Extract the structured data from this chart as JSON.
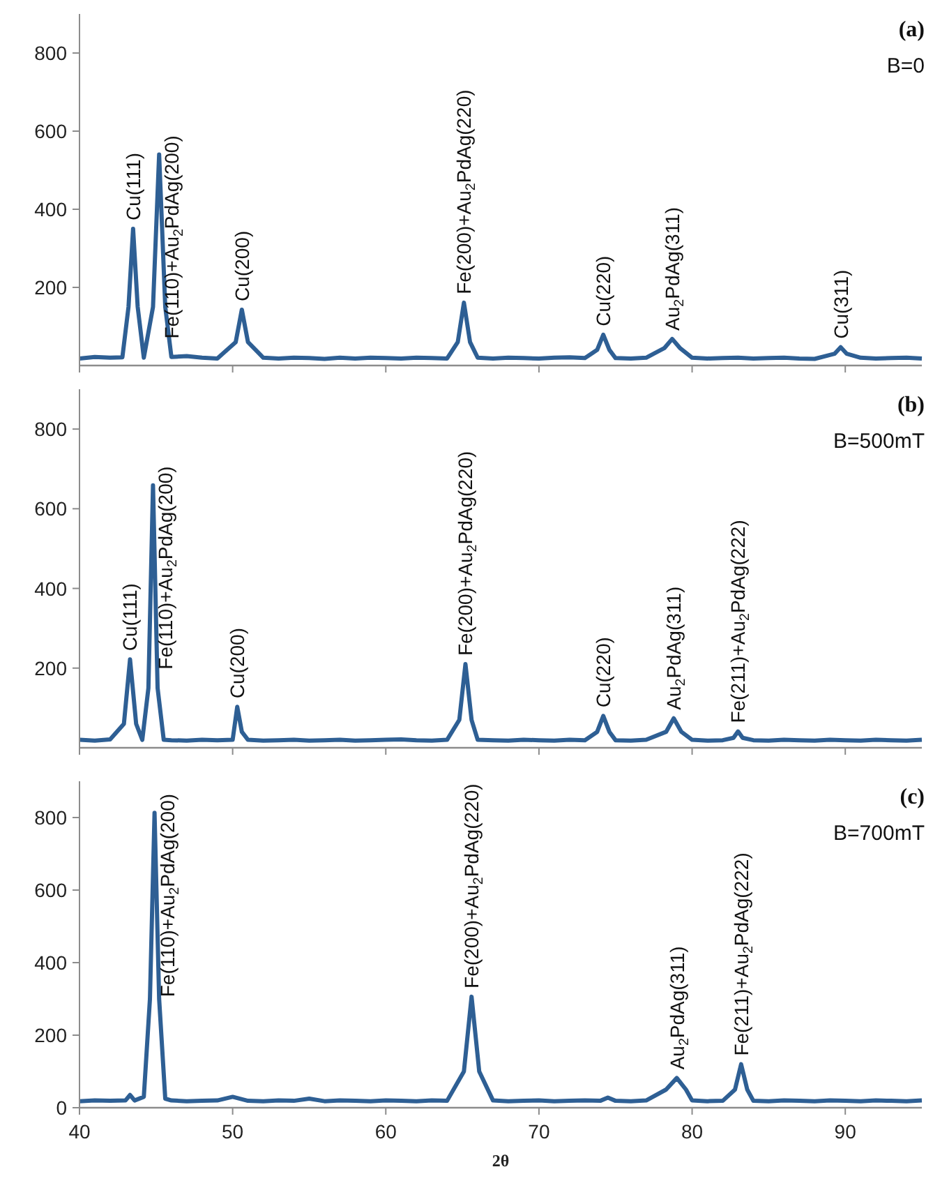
{
  "chart_data": [
    {
      "type": "line",
      "xlim": [
        40,
        95
      ],
      "xticks": [
        40,
        50,
        60,
        70,
        80,
        90
      ],
      "ylim": [
        0,
        900
      ],
      "yticks": [
        200,
        400,
        600,
        800
      ],
      "tick_labels": "y",
      "x": [
        40,
        41,
        42,
        42.8,
        43.2,
        43.5,
        43.8,
        44.2,
        44.8,
        45.2,
        45.6,
        46,
        47,
        48,
        49,
        50.2,
        50.6,
        51,
        52,
        53,
        54,
        55,
        56,
        57,
        58,
        59,
        60,
        61,
        62,
        63,
        64,
        64.7,
        65.1,
        65.5,
        66,
        67,
        68,
        69,
        70,
        71,
        72,
        73,
        73.8,
        74.2,
        74.6,
        75,
        76,
        77,
        78.2,
        78.7,
        79.2,
        80,
        81,
        82,
        83,
        84,
        85,
        86,
        87,
        88,
        89.3,
        89.7,
        90.1,
        91,
        92,
        93,
        94,
        95
      ],
      "series": [
        {
          "color": "#2e5f94",
          "values": [
            18,
            22,
            20,
            21,
            150,
            350,
            150,
            20,
            150,
            540,
            150,
            22,
            24,
            20,
            18,
            60,
            143,
            60,
            20,
            18,
            20,
            19,
            17,
            20,
            18,
            20,
            19,
            18,
            20,
            19,
            18,
            60,
            161,
            60,
            20,
            18,
            20,
            19,
            18,
            20,
            21,
            19,
            40,
            79,
            40,
            19,
            18,
            20,
            45,
            68,
            45,
            20,
            18,
            19,
            20,
            18,
            19,
            20,
            18,
            17,
            30,
            47,
            30,
            20,
            18,
            19,
            20,
            18
          ]
        }
      ],
      "annotations": [
        "(a)",
        "B=0",
        {
          "text": "Cu(111)",
          "x": 43.5,
          "y": 350
        },
        {
          "text": "Fe(110)+Au$_{2}$PdAg(200)",
          "x": 45.2,
          "y": 540
        },
        {
          "text": "Cu(200)",
          "x": 50.6,
          "y": 143
        },
        {
          "text": "Fe(200)+Au$_{2}$PdAg(220)",
          "x": 65.1,
          "y": 161
        },
        {
          "text": "Cu(220)",
          "x": 74.2,
          "y": 79
        },
        {
          "text": "Au$_{2}$PdAg(311)",
          "x": 78.7,
          "y": 68
        },
        {
          "text": "Cu(311)",
          "x": 89.7,
          "y": 47
        }
      ]
    },
    {
      "type": "line",
      "xlim": [
        40,
        95
      ],
      "xticks": [
        40,
        50,
        60,
        70,
        80,
        90
      ],
      "ylim": [
        0,
        900
      ],
      "yticks": [
        200,
        400,
        600,
        800
      ],
      "tick_labels": "y",
      "x": [
        40,
        41,
        42,
        42.9,
        43.3,
        43.7,
        44.1,
        44.5,
        44.8,
        45.1,
        45.5,
        46,
        47,
        48,
        49,
        50,
        50.3,
        50.6,
        51,
        52,
        53,
        54,
        55,
        56,
        57,
        58,
        59,
        60,
        61,
        62,
        63,
        64,
        64.8,
        65.2,
        65.6,
        66,
        67,
        68,
        69,
        70,
        71,
        72,
        73,
        73.8,
        74.2,
        74.6,
        75,
        76,
        77,
        78.3,
        78.8,
        79.3,
        80,
        81,
        82,
        82.7,
        83,
        83.3,
        84,
        85,
        86,
        87,
        88,
        89,
        90,
        91,
        92,
        93,
        94,
        95
      ],
      "series": [
        {
          "color": "#2e5f94",
          "values": [
            20,
            18,
            21,
            60,
            222,
            60,
            20,
            150,
            659,
            150,
            20,
            19,
            18,
            20,
            19,
            20,
            103,
            40,
            20,
            18,
            19,
            20,
            18,
            19,
            20,
            18,
            19,
            20,
            21,
            19,
            18,
            20,
            70,
            210,
            70,
            20,
            19,
            18,
            20,
            19,
            18,
            20,
            19,
            40,
            80,
            40,
            19,
            18,
            20,
            40,
            74,
            40,
            20,
            18,
            19,
            25,
            41,
            25,
            19,
            18,
            20,
            19,
            18,
            20,
            19,
            18,
            20,
            19,
            18,
            20
          ]
        }
      ],
      "annotations": [
        "(b)",
        "B=500mT",
        {
          "text": "Cu(111)",
          "x": 43.3,
          "y": 222
        },
        {
          "text": "Fe(110)+Au$_{2}$PdAg(200)",
          "x": 44.8,
          "y": 659
        },
        {
          "text": "Cu(200)",
          "x": 50.3,
          "y": 103
        },
        {
          "text": "Fe(200)+Au$_{2}$PdAg(220)",
          "x": 65.2,
          "y": 210
        },
        {
          "text": "Cu(220)",
          "x": 74.2,
          "y": 80
        },
        {
          "text": "Au$_{2}$PdAg(311)",
          "x": 78.8,
          "y": 74
        },
        {
          "text": "Fe(211)+Au$_{2}$PdAg(222)",
          "x": 83,
          "y": 41
        }
      ]
    },
    {
      "type": "line",
      "xlim": [
        40,
        95
      ],
      "xticks": [
        40,
        50,
        60,
        70,
        80,
        90
      ],
      "ylim": [
        0,
        900
      ],
      "yticks": [
        0,
        200,
        400,
        600,
        800
      ],
      "xlabel": "2θ",
      "x": [
        40,
        41,
        42,
        43,
        43.3,
        43.6,
        44.2,
        44.6,
        44.9,
        45.2,
        45.6,
        46,
        47,
        48,
        49,
        50,
        51,
        52,
        53,
        54,
        55,
        56,
        57,
        58,
        59,
        60,
        61,
        62,
        63,
        64,
        65.1,
        65.6,
        66.1,
        67,
        68,
        69,
        70,
        71,
        72,
        73,
        74,
        74.5,
        75,
        76,
        77,
        78.3,
        79,
        79.6,
        80,
        81,
        82,
        82.8,
        83.2,
        83.6,
        84,
        85,
        86,
        87,
        88,
        89,
        90,
        91,
        92,
        93,
        94,
        95
      ],
      "series": [
        {
          "color": "#2e5f94",
          "values": [
            18,
            20,
            19,
            20,
            35,
            20,
            30,
            300,
            813,
            300,
            25,
            20,
            18,
            19,
            20,
            30,
            19,
            18,
            20,
            19,
            25,
            18,
            20,
            19,
            18,
            20,
            19,
            18,
            20,
            19,
            100,
            306,
            100,
            20,
            18,
            19,
            20,
            18,
            19,
            20,
            19,
            28,
            19,
            18,
            20,
            50,
            82,
            50,
            20,
            18,
            19,
            50,
            120,
            50,
            19,
            18,
            20,
            19,
            18,
            20,
            19,
            18,
            20,
            19,
            18,
            20
          ]
        }
      ],
      "annotations": [
        "(c)",
        "B=700mT",
        {
          "text": "Fe(110)+Au$_{2}$PdAg(200)",
          "x": 44.9,
          "y": 813
        },
        {
          "text": "Fe(200)+Au$_{2}$PdAg(220)",
          "x": 65.6,
          "y": 306
        },
        {
          "text": "Au$_{2}$PdAg(311)",
          "x": 79,
          "y": 82
        },
        {
          "text": "Fe(211)+Au$_{2}$PdAg(222)",
          "x": 83.2,
          "y": 120
        }
      ]
    }
  ]
}
